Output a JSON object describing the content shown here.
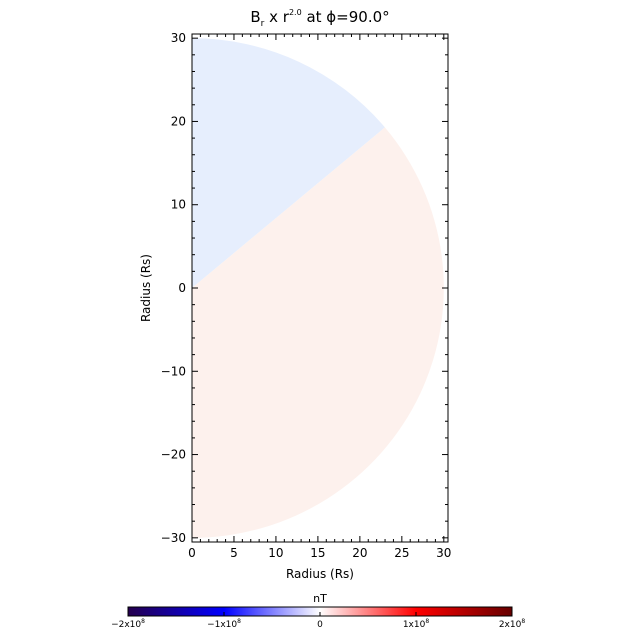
{
  "chart_data": {
    "type": "heatmap",
    "title": "B, x r^2.0 at ϕ=90.0°",
    "title_parts": {
      "symbol": "B",
      "sub": "r",
      "mid": " x r",
      "exp": "2.0",
      "rest": " at ϕ=90.0°"
    },
    "xlabel": "Radius (Rs)",
    "ylabel": "Radius (Rs)",
    "xlim": [
      0,
      30.5
    ],
    "ylim": [
      -30.5,
      30.5
    ],
    "x_ticks": [
      "0",
      "5",
      "10",
      "15",
      "20",
      "25",
      "30"
    ],
    "y_ticks": [
      "30",
      "20",
      "10",
      "0",
      "−10",
      "−20",
      "−30"
    ],
    "x_tick_values": [
      0,
      5,
      10,
      15,
      20,
      25,
      30
    ],
    "y_tick_values": [
      30,
      20,
      10,
      0,
      -10,
      -20,
      -30
    ],
    "domain_radius": 30,
    "regions": [
      {
        "name": "negative-polarity",
        "theta_from_deg": 90,
        "theta_to_deg": 40,
        "value_fraction": -0.07,
        "color": "#e6eefd"
      },
      {
        "name": "positive-polarity",
        "theta_from_deg": 40,
        "theta_to_deg": -90,
        "value_fraction": 0.03,
        "color": "#fdf1ed"
      }
    ],
    "colorbar": {
      "label": "nT",
      "min": -200000000.0,
      "max": 200000000.0,
      "tick_labels": [
        "−2x10",
        "−1x10",
        "0",
        "1x10",
        "2x10"
      ],
      "tick_exponents": [
        "8",
        "8",
        "",
        "8",
        "8"
      ],
      "colors": [
        "#25004d",
        "#0000ff",
        "#ffffff",
        "#ff0000",
        "#660000"
      ]
    }
  }
}
